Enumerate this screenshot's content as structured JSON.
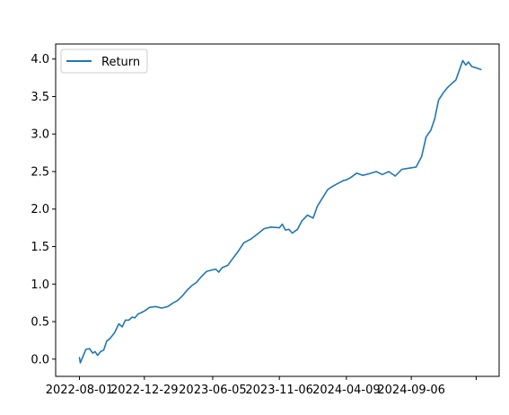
{
  "chart_data": {
    "type": "line",
    "title": "",
    "xlabel": "",
    "ylabel": "",
    "legend": {
      "placement": "top-left",
      "entries": [
        "Return"
      ]
    },
    "grid": false,
    "xlim": [
      "2022-06-07",
      "2025-03-28"
    ],
    "ylim": [
      -0.23,
      4.2
    ],
    "x_ticks": [
      "2022-08-01",
      "2022-12-29",
      "2023-06-05",
      "2023-11-06",
      "2024-04-09",
      "2024-09-06",
      ""
    ],
    "y_ticks": [
      "0.0",
      "0.5",
      "1.0",
      "1.5",
      "2.0",
      "2.5",
      "3.0",
      "3.5",
      "4.0"
    ],
    "y_tick_values": [
      0.0,
      0.5,
      1.0,
      1.5,
      2.0,
      2.5,
      3.0,
      3.5,
      4.0
    ],
    "series": [
      {
        "name": "Return",
        "color": "#1f77b4",
        "x": [
          "2022-08-01",
          "2022-08-03",
          "2022-08-08",
          "2022-08-16",
          "2022-08-24",
          "2022-09-01",
          "2022-09-06",
          "2022-09-12",
          "2022-09-19",
          "2022-09-26",
          "2022-10-03",
          "2022-10-10",
          "2022-10-21",
          "2022-10-31",
          "2022-11-08",
          "2022-11-15",
          "2022-11-23",
          "2022-12-01",
          "2022-12-07",
          "2022-12-14",
          "2022-12-22",
          "2022-12-29",
          "2023-01-10",
          "2023-01-24",
          "2023-02-07",
          "2023-02-21",
          "2023-03-06",
          "2023-03-16",
          "2023-03-28",
          "2023-04-07",
          "2023-04-18",
          "2023-04-28",
          "2023-05-10",
          "2023-05-22",
          "2023-06-05",
          "2023-06-12",
          "2023-06-19",
          "2023-06-27",
          "2023-07-10",
          "2023-07-20",
          "2023-08-02",
          "2023-08-16",
          "2023-09-01",
          "2023-09-15",
          "2023-10-02",
          "2023-10-18",
          "2023-11-06",
          "2023-11-13",
          "2023-11-20",
          "2023-11-28",
          "2023-12-06",
          "2023-12-18",
          "2023-12-28",
          "2024-01-10",
          "2024-01-23",
          "2024-02-02",
          "2024-02-14",
          "2024-02-26",
          "2024-03-07",
          "2024-03-20",
          "2024-04-02",
          "2024-04-09",
          "2024-04-19",
          "2024-05-03",
          "2024-05-17",
          "2024-05-31",
          "2024-06-17",
          "2024-07-01",
          "2024-07-16",
          "2024-07-31",
          "2024-08-15",
          "2024-09-06",
          "2024-09-17",
          "2024-09-30",
          "2024-10-10",
          "2024-10-21",
          "2024-10-30",
          "2024-11-08",
          "2024-11-19",
          "2024-11-29",
          "2024-12-10",
          "2024-12-18",
          "2024-12-26",
          "2025-01-03",
          "2025-01-10",
          "2025-01-16",
          "2025-01-24",
          "2025-02-04",
          "2025-02-14"
        ],
        "values": [
          0.02,
          -0.05,
          0.02,
          0.13,
          0.14,
          0.08,
          0.1,
          0.05,
          0.1,
          0.12,
          0.24,
          0.27,
          0.35,
          0.47,
          0.43,
          0.52,
          0.52,
          0.56,
          0.55,
          0.6,
          0.62,
          0.64,
          0.69,
          0.7,
          0.68,
          0.7,
          0.75,
          0.78,
          0.85,
          0.92,
          0.98,
          1.02,
          1.1,
          1.17,
          1.19,
          1.2,
          1.16,
          1.22,
          1.25,
          1.33,
          1.43,
          1.55,
          1.6,
          1.66,
          1.74,
          1.76,
          1.75,
          1.8,
          1.72,
          1.73,
          1.68,
          1.73,
          1.84,
          1.92,
          1.88,
          2.04,
          2.15,
          2.26,
          2.3,
          2.34,
          2.38,
          2.39,
          2.42,
          2.48,
          2.45,
          2.47,
          2.5,
          2.46,
          2.5,
          2.44,
          2.53,
          2.55,
          2.56,
          2.7,
          2.96,
          3.05,
          3.2,
          3.45,
          3.55,
          3.62,
          3.68,
          3.72,
          3.85,
          3.98,
          3.92,
          3.96,
          3.9,
          3.88,
          3.86
        ]
      }
    ]
  }
}
